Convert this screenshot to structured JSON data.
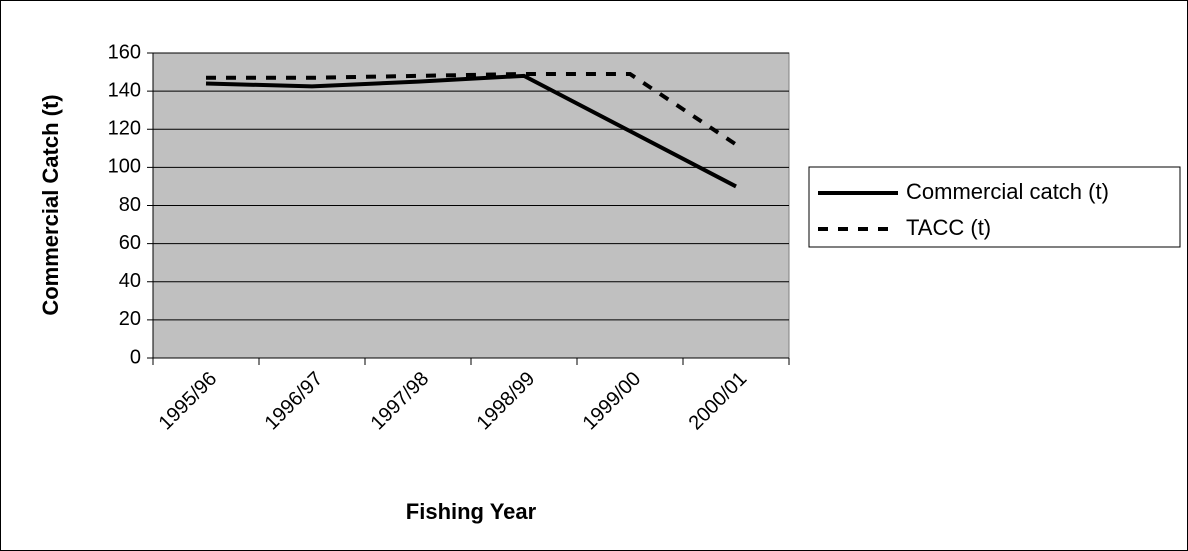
{
  "chart_data": {
    "type": "line",
    "x_label": "Fishing Year",
    "y_label": "Commercial Catch (t)",
    "categories": [
      "1995/96",
      "1996/97",
      "1997/98",
      "1998/99",
      "1999/00",
      "2000/01"
    ],
    "series": [
      {
        "name": "Commercial catch (t)",
        "color": "#000000",
        "dash": "solid",
        "values": [
          144,
          142.5,
          145,
          148,
          119,
          90
        ]
      },
      {
        "name": "TACC (t)",
        "color": "#000000",
        "dash": "dashed",
        "values": [
          147,
          147,
          148,
          149,
          149,
          112
        ]
      }
    ],
    "ylim": [
      0,
      160
    ],
    "yticks": [
      0,
      20,
      40,
      60,
      80,
      100,
      120,
      140,
      160
    ],
    "grid": true,
    "plot_background": "#c0c0c0",
    "legend": "right"
  }
}
